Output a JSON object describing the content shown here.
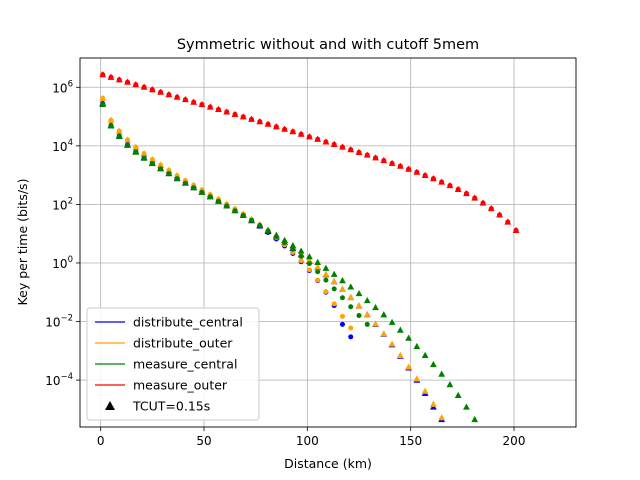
{
  "chart_data": {
    "type": "scatter",
    "title": "Symmetric without and with cutoff 5mem",
    "xlabel": "Distance (km)",
    "ylabel": "Key per time (bits/s)",
    "xlim": [
      -10,
      230
    ],
    "ylim": [
      2.5e-06,
      10000000
    ],
    "xscale": "linear",
    "yscale": "log",
    "grid": true,
    "legend_position": "lower-left",
    "x_ticks": [
      0,
      50,
      100,
      150,
      200
    ],
    "y_ticks": [
      {
        "value": 0.0001,
        "base": "10",
        "exp": "−4"
      },
      {
        "value": 0.01,
        "base": "10",
        "exp": "−2"
      },
      {
        "value": 1,
        "base": "10",
        "exp": "0"
      },
      {
        "value": 100,
        "base": "10",
        "exp": "2"
      },
      {
        "value": 10000,
        "base": "10",
        "exp": "4"
      },
      {
        "value": 1000000,
        "base": "10",
        "exp": "6"
      }
    ],
    "legend": [
      {
        "label": "distribute_central",
        "color": "#0000ff",
        "kind": "line"
      },
      {
        "label": "distribute_outer",
        "color": "#ffa500",
        "kind": "line"
      },
      {
        "label": "measure_central",
        "color": "#008000",
        "kind": "line"
      },
      {
        "label": "measure_outer",
        "color": "#ff0000",
        "kind": "line"
      },
      {
        "label": "TCUT=0.15s",
        "color": "#000000",
        "kind": "triangle"
      }
    ],
    "series": [
      {
        "name": "distribute_central",
        "color": "#0000ff",
        "x": [
          1,
          5,
          9,
          13,
          17,
          21,
          25,
          29,
          33,
          37,
          41,
          45,
          49,
          53,
          57,
          61,
          65,
          69,
          73,
          77,
          81,
          85,
          89,
          93,
          97,
          101,
          105,
          109,
          113,
          117,
          121
        ],
        "y": [
          280000,
          50000,
          22000,
          11000,
          6400,
          4000,
          2600,
          1700,
          1150,
          780,
          540,
          380,
          265,
          185,
          130,
          90,
          62,
          42,
          28,
          18,
          11,
          6.6,
          3.8,
          2.1,
          1.1,
          0.55,
          0.25,
          0.1,
          0.035,
          0.008,
          0.003
        ],
        "tcut_x": [
          1,
          5,
          9,
          13,
          17,
          21,
          25,
          29,
          33,
          37,
          41,
          45,
          49,
          53,
          57,
          61,
          65,
          69,
          73,
          77,
          81,
          85,
          89,
          93,
          97,
          101,
          105,
          109,
          113,
          117,
          121,
          125,
          129,
          133,
          137,
          141,
          145,
          149,
          153,
          157,
          161,
          165,
          169,
          173
        ],
        "tcut_y": [
          280000,
          50000,
          22000,
          11000,
          6400,
          4000,
          2600,
          1700,
          1150,
          780,
          540,
          380,
          265,
          185,
          130,
          90,
          62,
          42,
          28,
          18.5,
          12,
          7.8,
          5,
          3.1,
          1.9,
          1.15,
          0.7,
          0.4,
          0.23,
          0.125,
          0.066,
          0.034,
          0.017,
          0.008,
          0.0037,
          0.0016,
          0.00066,
          0.00026,
          0.0001,
          3.5e-05,
          1.2e-05,
          4.5e-06,
          1.5e-06,
          5e-07
        ]
      },
      {
        "name": "distribute_outer",
        "color": "#ffa500",
        "x": [
          1,
          5,
          9,
          13,
          17,
          21,
          25,
          29,
          33,
          37,
          41,
          45,
          49,
          53,
          57,
          61,
          65,
          69,
          73,
          77,
          81,
          85,
          89,
          93,
          97,
          101,
          105,
          109,
          113,
          117,
          121
        ],
        "y": [
          420000,
          75000,
          32000,
          16000,
          9000,
          5400,
          3400,
          2200,
          1450,
          960,
          650,
          450,
          310,
          215,
          150,
          103,
          70,
          47,
          31,
          20,
          12.5,
          7.4,
          4.2,
          2.3,
          1.2,
          0.58,
          0.26,
          0.105,
          0.04,
          0.015,
          0.006
        ],
        "tcut_x": [
          1,
          5,
          9,
          13,
          17,
          21,
          25,
          29,
          33,
          37,
          41,
          45,
          49,
          53,
          57,
          61,
          65,
          69,
          73,
          77,
          81,
          85,
          89,
          93,
          97,
          101,
          105,
          109,
          113,
          117,
          121,
          125,
          129,
          133,
          137,
          141,
          145,
          149,
          153,
          157,
          161,
          165,
          169,
          173
        ],
        "tcut_y": [
          420000,
          75000,
          32000,
          16000,
          9000,
          5400,
          3400,
          2200,
          1450,
          960,
          650,
          450,
          310,
          215,
          150,
          103,
          70,
          47,
          31,
          20.5,
          13.3,
          8.6,
          5.5,
          3.4,
          2.05,
          1.22,
          0.72,
          0.41,
          0.23,
          0.125,
          0.066,
          0.034,
          0.017,
          0.0082,
          0.0038,
          0.0017,
          0.0007,
          0.00028,
          0.00011,
          4.2e-05,
          1.5e-05,
          5.2e-06,
          1.8e-06,
          6e-07
        ]
      },
      {
        "name": "measure_central",
        "color": "#008000",
        "x": [
          1,
          5,
          9,
          13,
          17,
          21,
          25,
          29,
          33,
          37,
          41,
          45,
          49,
          53,
          57,
          61,
          65,
          69,
          73,
          77,
          81,
          85,
          89,
          93,
          97,
          101,
          105,
          109,
          113,
          117,
          121,
          125,
          129
        ],
        "y": [
          260000,
          48000,
          21000,
          10500,
          6100,
          3800,
          2500,
          1650,
          1120,
          760,
          530,
          370,
          260,
          182,
          128,
          89,
          61,
          42,
          28.5,
          19,
          12.4,
          7.9,
          4.9,
          2.95,
          1.7,
          0.95,
          0.5,
          0.26,
          0.13,
          0.065,
          0.032,
          0.016,
          0.008
        ],
        "tcut_x": [
          1,
          5,
          9,
          13,
          17,
          21,
          25,
          29,
          33,
          37,
          41,
          45,
          49,
          53,
          57,
          61,
          65,
          69,
          73,
          77,
          81,
          85,
          89,
          93,
          97,
          101,
          105,
          109,
          113,
          117,
          121,
          125,
          129,
          133,
          137,
          141,
          145,
          149,
          153,
          157,
          161,
          165,
          169,
          173,
          177,
          181,
          185,
          189
        ],
        "tcut_y": [
          260000,
          48000,
          21000,
          10500,
          6100,
          3800,
          2500,
          1650,
          1120,
          760,
          530,
          370,
          260,
          182,
          128,
          89,
          61,
          42,
          28.5,
          19.5,
          13,
          8.8,
          5.9,
          3.9,
          2.55,
          1.64,
          1.05,
          0.66,
          0.41,
          0.25,
          0.152,
          0.09,
          0.052,
          0.03,
          0.017,
          0.0094,
          0.0051,
          0.0027,
          0.0014,
          0.0007,
          0.00034,
          0.00016,
          7e-05,
          3e-05,
          1.2e-05,
          4.5e-06,
          1.7e-06,
          6e-07
        ]
      },
      {
        "name": "measure_outer",
        "color": "#ff0000",
        "x": [
          1,
          5,
          9,
          13,
          17,
          21,
          25,
          29,
          33,
          37,
          41,
          45,
          49,
          53,
          57,
          61,
          65,
          69,
          73,
          77,
          81,
          85,
          89,
          93,
          97,
          101,
          105,
          109,
          113,
          117,
          121,
          125,
          129,
          133,
          137,
          141,
          145,
          149,
          153,
          157,
          161,
          165,
          169,
          173,
          177,
          181,
          185,
          189,
          193,
          197,
          201
        ],
        "y": [
          2700000,
          2200000,
          1800000,
          1500000,
          1230000,
          1010000,
          830000,
          680000,
          560000,
          460000,
          380000,
          312000,
          257000,
          212000,
          175000,
          144000,
          119000,
          98000,
          81000,
          67000,
          55000,
          45000,
          37000,
          30500,
          25000,
          20500,
          16800,
          13700,
          11200,
          9100,
          7400,
          6000,
          4850,
          3900,
          3150,
          2530,
          2020,
          1600,
          1260,
          980,
          760,
          580,
          440,
          325,
          235,
          165,
          112,
          72,
          44,
          25,
          13
        ],
        "tcut_x": [
          1,
          5,
          9,
          13,
          17,
          21,
          25,
          29,
          33,
          37,
          41,
          45,
          49,
          53,
          57,
          61,
          65,
          69,
          73,
          77,
          81,
          85,
          89,
          93,
          97,
          101,
          105,
          109,
          113,
          117,
          121,
          125,
          129,
          133,
          137,
          141,
          145,
          149,
          153,
          157,
          161,
          165,
          169,
          173,
          177,
          181,
          185,
          189,
          193,
          197,
          201
        ],
        "tcut_y": [
          2700000,
          2200000,
          1800000,
          1500000,
          1230000,
          1010000,
          830000,
          680000,
          560000,
          460000,
          380000,
          312000,
          257000,
          212000,
          175000,
          144000,
          119000,
          98000,
          81000,
          67000,
          55000,
          45000,
          37000,
          30500,
          25000,
          20500,
          16800,
          13700,
          11200,
          9100,
          7400,
          6000,
          4850,
          3900,
          3150,
          2530,
          2020,
          1600,
          1260,
          980,
          760,
          580,
          440,
          325,
          235,
          165,
          112,
          72,
          44,
          25,
          13
        ]
      }
    ]
  }
}
